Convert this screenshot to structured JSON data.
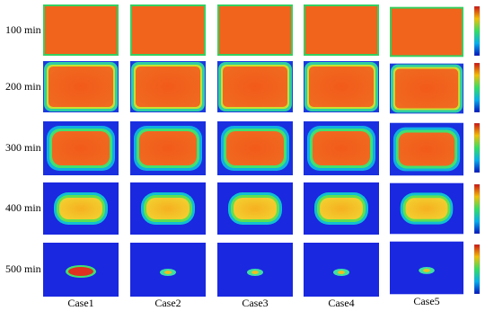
{
  "row_labels": [
    "100 min",
    "200 min",
    "300 min",
    "400 min",
    "500 min"
  ],
  "column_labels": [
    "Case1",
    "Case2",
    "Case3",
    "Case4",
    "Case5"
  ]
}
